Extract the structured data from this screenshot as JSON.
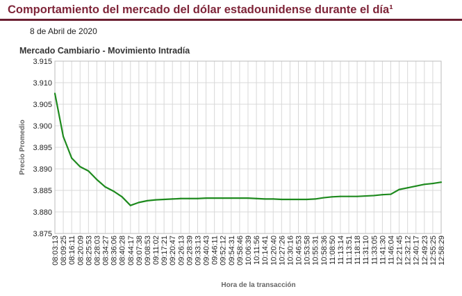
{
  "page": {
    "title": "Comportamiento del mercado del dólar estadounidense durante el día¹",
    "date": "8 de Abril de 2020"
  },
  "colors": {
    "title": "#7f2539",
    "rule": "#6b1f31",
    "line": "#1e8a1e",
    "grid": "#d8d8d8"
  },
  "chart_data": {
    "type": "line",
    "title": "Mercado Cambiario - Movimiento Intradía",
    "xlabel": "Hora de la transacción",
    "ylabel": "Precio Promedio",
    "ylim": [
      3.875,
      3.915
    ],
    "yticks": [
      "3.915",
      "3.910",
      "3.905",
      "3.900",
      "3.895",
      "3.890",
      "3.885",
      "3.880",
      "3.875"
    ],
    "grid": true,
    "categories": [
      "08:03:13",
      "08:09:25",
      "08:16:11",
      "08:20:09",
      "08:25:53",
      "08:28:03",
      "08:34:27",
      "08:36:06",
      "08:40:28",
      "08:44:17",
      "09:07:38",
      "09:08:53",
      "09:11:02",
      "09:17:21",
      "09:20:47",
      "09:26:13",
      "09:28:39",
      "09:33:13",
      "09:40:43",
      "09:46:11",
      "09:52:12",
      "09:54:31",
      "09:58:46",
      "10:06:39",
      "10:11:56",
      "10:14:41",
      "10:20:40",
      "10:27:26",
      "10:30:16",
      "10:46:53",
      "10:53:58",
      "10:55:31",
      "10:58:36",
      "11:08:50",
      "11:13:14",
      "11:13:51",
      "11:18:18",
      "11:31:10",
      "11:33:05",
      "11:41:30",
      "11:46:04",
      "12:21:45",
      "12:32:12",
      "12:40:17",
      "12:49:23",
      "12:55:25",
      "12:58:29"
    ],
    "series": [
      {
        "values": [
          3.9075,
          3.8975,
          3.8925,
          3.8905,
          3.8895,
          3.8875,
          3.8858,
          3.8848,
          3.8835,
          3.8815,
          3.8822,
          3.8826,
          3.8828,
          3.8829,
          3.883,
          3.8831,
          3.8831,
          3.8831,
          3.8832,
          3.8832,
          3.8832,
          3.8832,
          3.8832,
          3.8832,
          3.8831,
          3.883,
          3.883,
          3.8829,
          3.8829,
          3.8829,
          3.8829,
          3.883,
          3.8833,
          3.8835,
          3.8836,
          3.8836,
          3.8836,
          3.8837,
          3.8838,
          3.884,
          3.8841,
          3.8852,
          3.8856,
          3.886,
          3.8864,
          3.8866,
          3.8869
        ]
      }
    ]
  }
}
